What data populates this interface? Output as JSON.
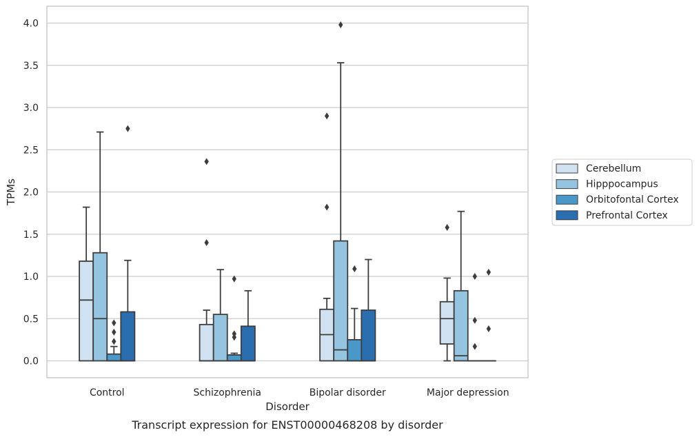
{
  "chart_data": {
    "type": "boxplot",
    "caption": "Transcript expression for ENST00000468208 by disorder",
    "xlabel": "Disorder",
    "ylabel": "TPMs",
    "ylim": [
      -0.2,
      4.2
    ],
    "yticks": [
      "0.0",
      "0.5",
      "1.0",
      "1.5",
      "2.0",
      "2.5",
      "3.0",
      "3.5",
      "4.0"
    ],
    "grid": true,
    "legend_position": "right",
    "categories": [
      "Control",
      "Schizophrenia",
      "Bipolar disorder",
      "Major depression"
    ],
    "series": [
      {
        "name": "Cerebellum",
        "color": "#d0e1f2",
        "boxes": [
          {
            "min": 0.0,
            "q1": 0.0,
            "median": 0.72,
            "q3": 1.18,
            "max": 1.82,
            "outliers": []
          },
          {
            "min": 0.0,
            "q1": 0.0,
            "median": 0.0,
            "q3": 0.43,
            "max": 0.6,
            "outliers": [
              1.4,
              2.36
            ]
          },
          {
            "min": 0.0,
            "q1": 0.0,
            "median": 0.31,
            "q3": 0.61,
            "max": 0.74,
            "outliers": [
              1.82,
              2.9
            ]
          },
          {
            "min": 0.0,
            "q1": 0.2,
            "median": 0.5,
            "q3": 0.7,
            "max": 0.98,
            "outliers": [
              1.58
            ]
          }
        ]
      },
      {
        "name": "Hipppocampus",
        "color": "#94c4df",
        "boxes": [
          {
            "min": 0.0,
            "q1": 0.0,
            "median": 0.5,
            "q3": 1.28,
            "max": 2.71,
            "outliers": []
          },
          {
            "min": 0.0,
            "q1": 0.0,
            "median": 0.0,
            "q3": 0.55,
            "max": 1.08,
            "outliers": []
          },
          {
            "min": 0.0,
            "q1": 0.0,
            "median": 0.13,
            "q3": 1.42,
            "max": 3.53,
            "outliers": [
              3.98
            ]
          },
          {
            "min": 0.0,
            "q1": 0.0,
            "median": 0.06,
            "q3": 0.83,
            "max": 1.77,
            "outliers": []
          }
        ]
      },
      {
        "name": "Orbitofontal Cortex",
        "color": "#4a98c9",
        "boxes": [
          {
            "min": 0.0,
            "q1": 0.0,
            "median": 0.0,
            "q3": 0.08,
            "max": 0.17,
            "outliers": [
              0.23,
              0.34,
              0.45
            ]
          },
          {
            "min": 0.0,
            "q1": 0.0,
            "median": 0.0,
            "q3": 0.07,
            "max": 0.09,
            "outliers": [
              0.28,
              0.32,
              0.97
            ]
          },
          {
            "min": 0.0,
            "q1": 0.0,
            "median": 0.0,
            "q3": 0.25,
            "max": 0.62,
            "outliers": [
              1.09
            ]
          },
          {
            "min": 0.0,
            "q1": 0.0,
            "median": 0.0,
            "q3": 0.0,
            "max": 0.0,
            "outliers": [
              0.17,
              0.48,
              1.0
            ]
          }
        ]
      },
      {
        "name": "Prefrontal Cortex",
        "color": "#2a6eaf",
        "boxes": [
          {
            "min": 0.0,
            "q1": 0.0,
            "median": 0.0,
            "q3": 0.58,
            "max": 1.19,
            "outliers": [
              2.75
            ]
          },
          {
            "min": 0.0,
            "q1": 0.0,
            "median": 0.0,
            "q3": 0.41,
            "max": 0.83,
            "outliers": []
          },
          {
            "min": 0.0,
            "q1": 0.0,
            "median": 0.0,
            "q3": 0.6,
            "max": 1.2,
            "outliers": []
          },
          {
            "min": 0.0,
            "q1": 0.0,
            "median": 0.0,
            "q3": 0.0,
            "max": 0.0,
            "outliers": [
              0.38,
              1.05
            ]
          }
        ]
      }
    ]
  }
}
